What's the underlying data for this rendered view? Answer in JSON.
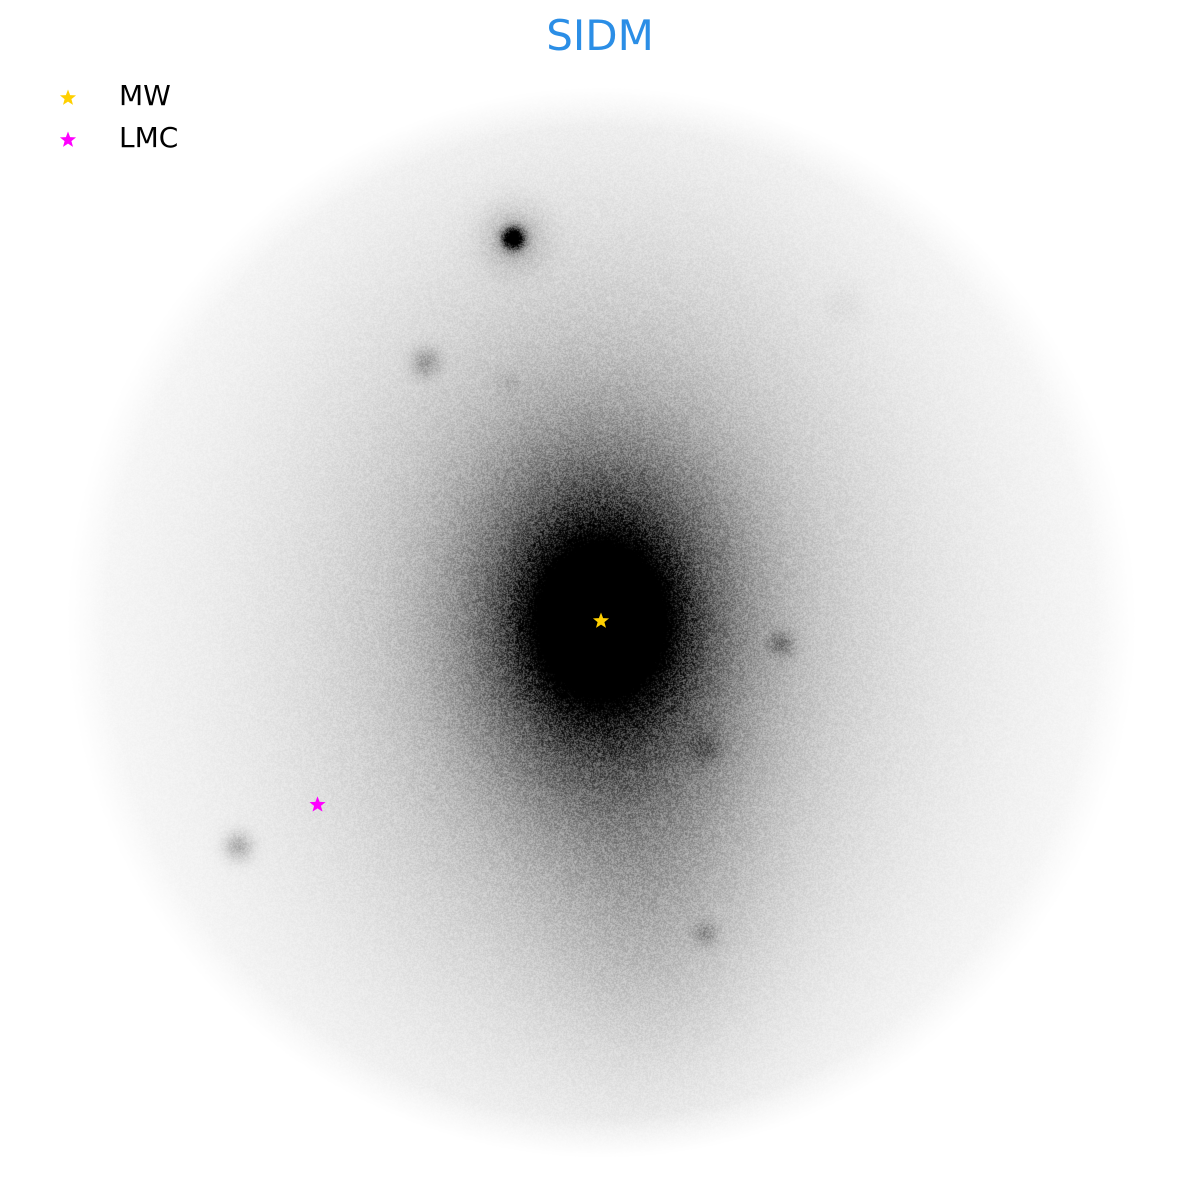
{
  "chart_data": {
    "type": "scatter",
    "title": "SIDM",
    "title_color": "#2b8ee6",
    "xlabel": "",
    "ylabel": "",
    "axes_visible": false,
    "grid": false,
    "legend_placement": "top-left",
    "background_map": "grayscale-particle-density",
    "series": [
      {
        "name": "MW",
        "color": "#ffd000",
        "marker": "star",
        "x": [
          0.0
        ],
        "y": [
          0.0
        ]
      },
      {
        "name": "LMC",
        "color": "#ff00ff",
        "marker": "star",
        "x": [
          -0.54
        ],
        "y": [
          -0.35
        ]
      }
    ],
    "xlim": [
      -1,
      1
    ],
    "ylim": [
      -1,
      1
    ]
  }
}
